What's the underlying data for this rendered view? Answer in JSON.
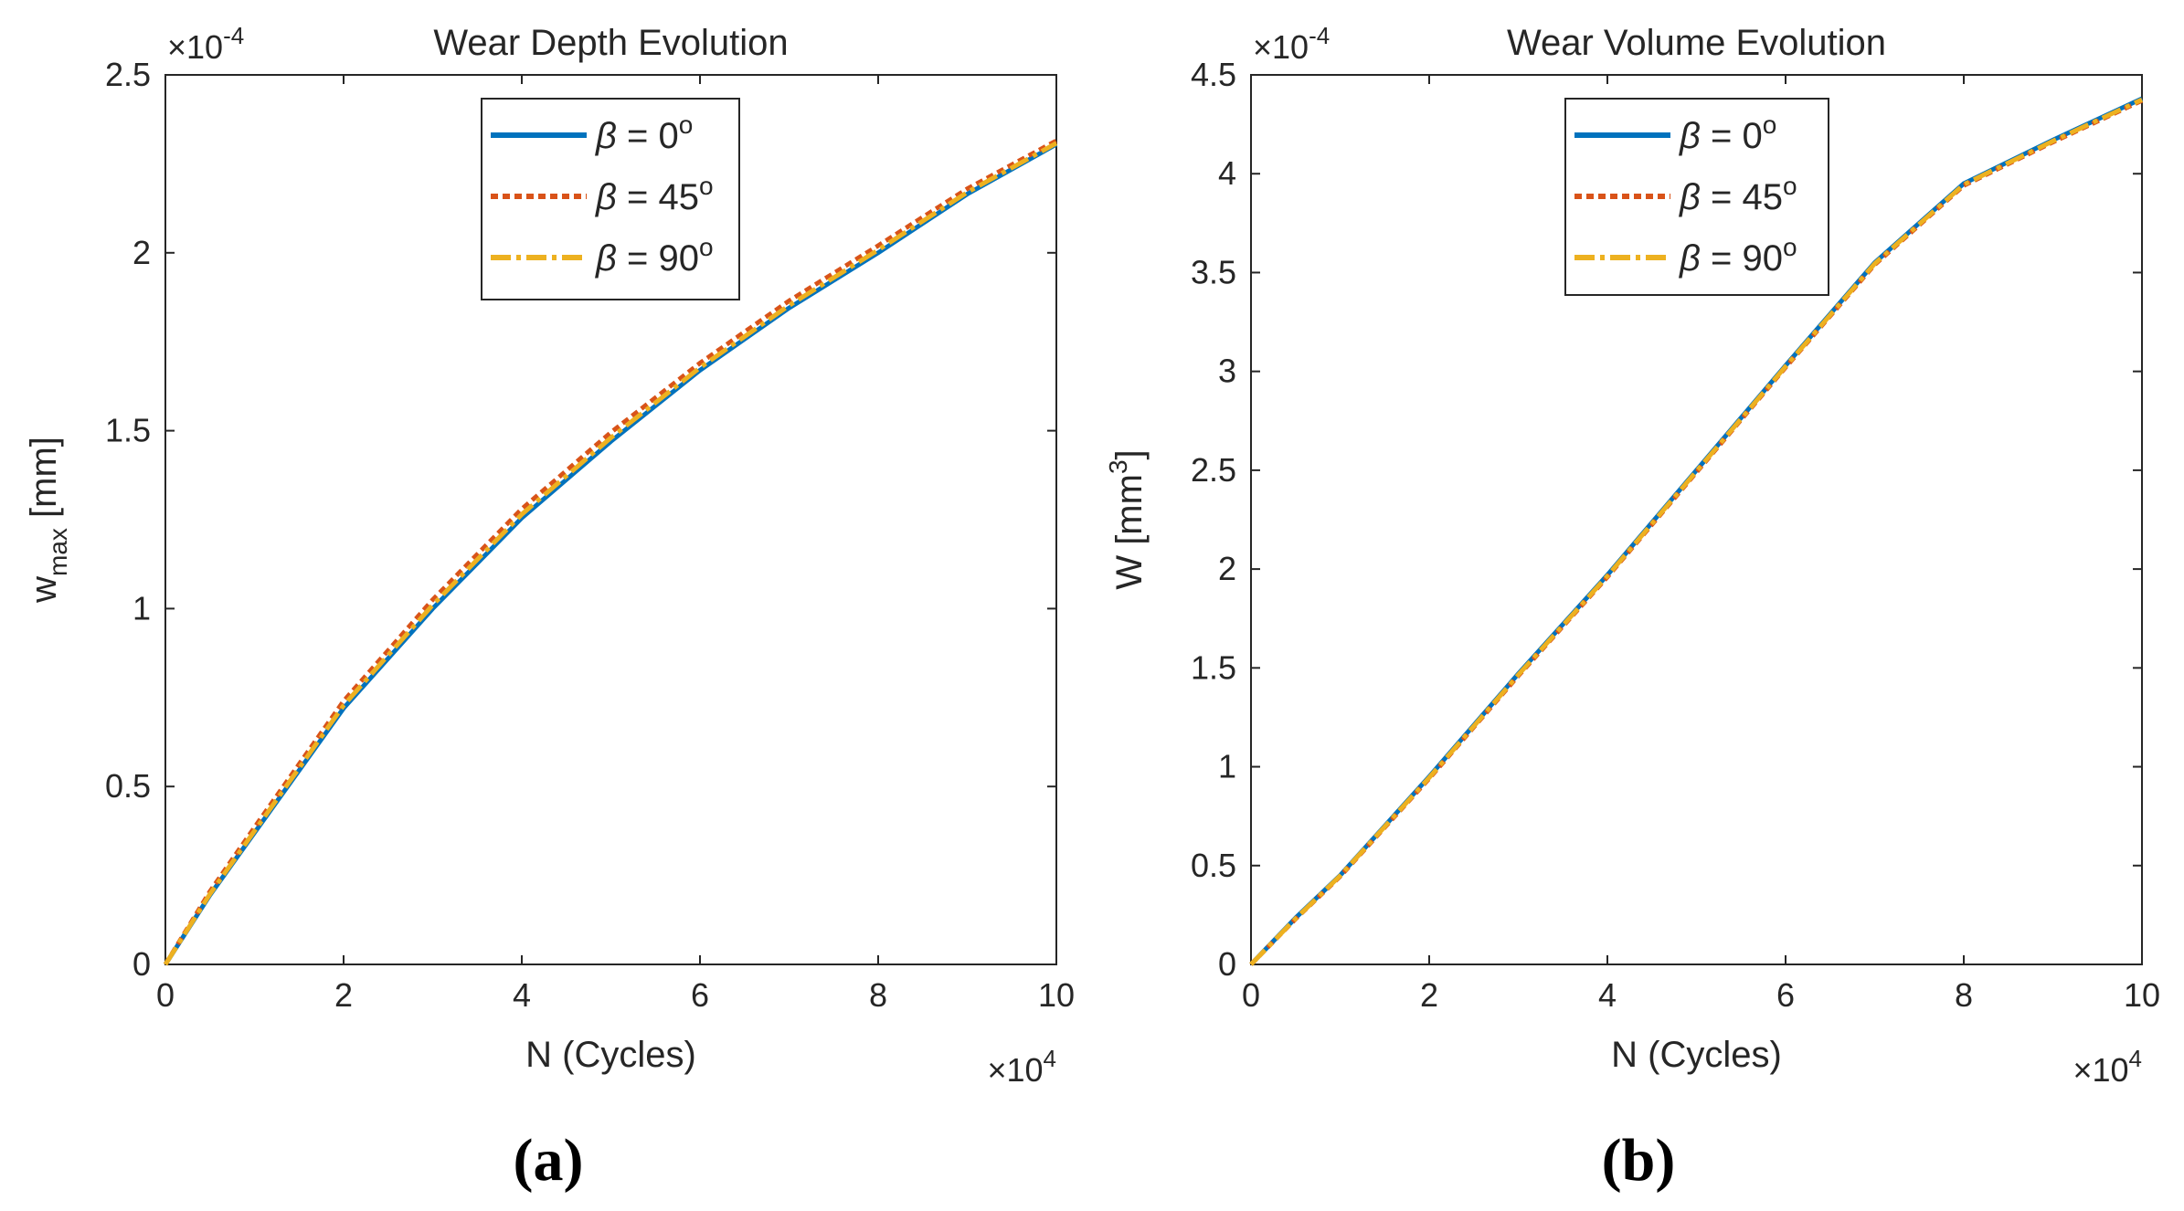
{
  "chart_data": [
    {
      "type": "line",
      "panel_label": "(a)",
      "title": "Wear Depth Evolution",
      "xlabel": "N (Cycles)",
      "ylabel_main": "w",
      "ylabel_sub": "max",
      "ylabel_unit": " [mm]",
      "x_exponent": {
        "base": "×10",
        "power": "4"
      },
      "y_exponent": {
        "base": "×10",
        "power": "-4"
      },
      "xlim": [
        0,
        10
      ],
      "ylim": [
        0,
        2.5
      ],
      "xticks": [
        0,
        2,
        4,
        6,
        8,
        10
      ],
      "xtick_labels": [
        "0",
        "2",
        "4",
        "6",
        "8",
        "10"
      ],
      "yticks": [
        0,
        0.5,
        1,
        1.5,
        2,
        2.5
      ],
      "ytick_labels": [
        "0",
        "0.5",
        "1",
        "1.5",
        "2",
        "2.5"
      ],
      "grid": false,
      "legend_position": "top-center",
      "series": [
        {
          "name": "β = 0°",
          "symbol": "β",
          "text": " = 0",
          "sup": "o",
          "color": "#0072BD",
          "style": "solid",
          "x": [
            0,
            0.5,
            1,
            2,
            3,
            4,
            5,
            6,
            7,
            8,
            9,
            10
          ],
          "y": [
            0,
            0.195,
            0.37,
            0.72,
            1.0,
            1.255,
            1.47,
            1.67,
            1.845,
            2.0,
            2.165,
            2.305
          ]
        },
        {
          "name": "β = 45°",
          "symbol": "β",
          "text": " = 45",
          "sup": "o",
          "color": "#D95319",
          "style": "dotted",
          "x": [
            0,
            0.5,
            1,
            2,
            3,
            4,
            5,
            6,
            7,
            8,
            9,
            10
          ],
          "y": [
            0,
            0.205,
            0.385,
            0.74,
            1.025,
            1.28,
            1.495,
            1.69,
            1.865,
            2.02,
            2.18,
            2.315
          ]
        },
        {
          "name": "β = 90°",
          "symbol": "β",
          "text": " = 90",
          "sup": "o",
          "color": "#EDB120",
          "style": "dashdot",
          "x": [
            0,
            0.5,
            1,
            2,
            3,
            4,
            5,
            6,
            7,
            8,
            9,
            10
          ],
          "y": [
            0,
            0.198,
            0.375,
            0.728,
            1.01,
            1.265,
            1.48,
            1.677,
            1.852,
            2.008,
            2.17,
            2.308
          ]
        }
      ]
    },
    {
      "type": "line",
      "panel_label": "(b)",
      "title": "Wear Volume Evolution",
      "xlabel": "N (Cycles)",
      "ylabel_main": "W [mm",
      "ylabel_sup": "3",
      "ylabel_unit": "]",
      "x_exponent": {
        "base": "×10",
        "power": "4"
      },
      "y_exponent": {
        "base": "×10",
        "power": "-4"
      },
      "xlim": [
        0,
        10
      ],
      "ylim": [
        0,
        4.5
      ],
      "xticks": [
        0,
        2,
        4,
        6,
        8,
        10
      ],
      "xtick_labels": [
        "0",
        "2",
        "4",
        "6",
        "8",
        "10"
      ],
      "yticks": [
        0,
        0.5,
        1,
        1.5,
        2,
        2.5,
        3,
        3.5,
        4,
        4.5
      ],
      "ytick_labels": [
        "0",
        "0.5",
        "1",
        "1.5",
        "2",
        "2.5",
        "3",
        "3.5",
        "4",
        "4.5"
      ],
      "grid": false,
      "legend_position": "top-left",
      "series": [
        {
          "name": "β = 0°",
          "symbol": "β",
          "text": " = 0",
          "sup": "o",
          "color": "#0072BD",
          "style": "solid",
          "x": [
            0,
            0.5,
            1,
            2,
            3,
            4,
            5,
            6,
            7,
            8,
            9,
            10
          ],
          "y": [
            0,
            0.235,
            0.45,
            0.95,
            1.47,
            1.97,
            2.5,
            3.03,
            3.55,
            3.95,
            4.17,
            4.38
          ]
        },
        {
          "name": "β = 45°",
          "symbol": "β",
          "text": " = 45",
          "sup": "o",
          "color": "#D95319",
          "style": "dotted",
          "x": [
            0,
            0.5,
            1,
            2,
            3,
            4,
            5,
            6,
            7,
            8,
            9,
            10
          ],
          "y": [
            0,
            0.23,
            0.445,
            0.94,
            1.46,
            1.96,
            2.49,
            3.02,
            3.54,
            3.94,
            4.16,
            4.37
          ]
        },
        {
          "name": "β = 90°",
          "symbol": "β",
          "text": " = 90",
          "sup": "o",
          "color": "#EDB120",
          "style": "dashdot",
          "x": [
            0,
            0.5,
            1,
            2,
            3,
            4,
            5,
            6,
            7,
            8,
            9,
            10
          ],
          "y": [
            0,
            0.232,
            0.448,
            0.945,
            1.465,
            1.965,
            2.495,
            3.025,
            3.545,
            3.945,
            4.165,
            4.375
          ]
        }
      ]
    }
  ]
}
